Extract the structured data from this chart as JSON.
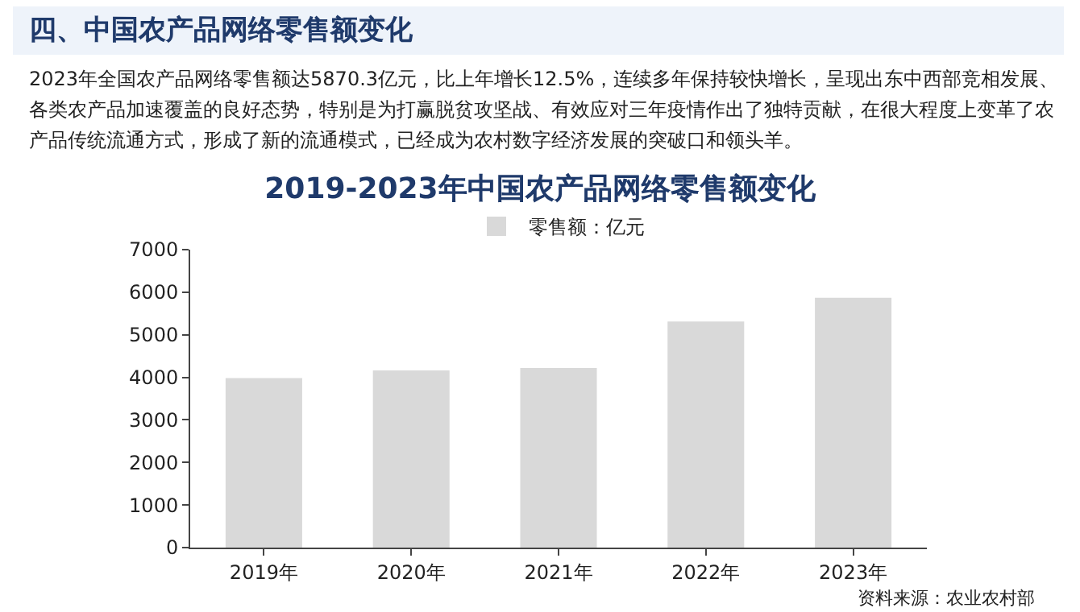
{
  "chart_data": {
    "type": "bar",
    "title": "2019-2023年中国农产品网络零售额变化",
    "annotations": [
      "四、中国农产品网络零售额变化",
      "2023年全国农产品网络零售额达5870.3亿元，比上年增长12.5%，连续多年保持较快增长，呈现出东中西部竞相发展、各类农产品加速覆盖的良好态势，特别是为打赢脱贫攻坚战、有效应对三年疫情作出了独特贡献，在很大程度上变革了农产品传统流通方式，形成了新的流通模式，已经成为农村数字经济发展的突破口和领头羊。",
      "资料来源：农业农村部"
    ],
    "categories": [
      "2019年",
      "2020年",
      "2021年",
      "2022年",
      "2023年"
    ],
    "series": [
      {
        "name": "零售额：亿元",
        "color": "#d9d9d9",
        "values": [
          3980,
          4160,
          4220,
          5310,
          5870
        ]
      }
    ],
    "ylim": [
      0,
      7000
    ],
    "yticks": [
      0,
      1000,
      2000,
      3000,
      4000,
      5000,
      6000,
      7000
    ],
    "legend": "top"
  }
}
